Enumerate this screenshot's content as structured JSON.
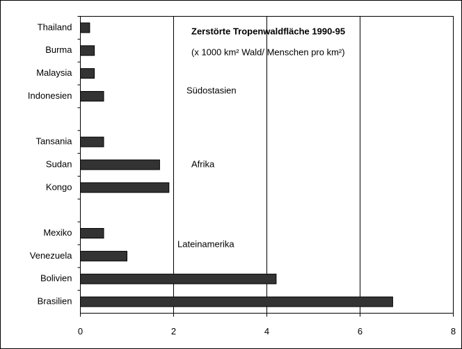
{
  "chart_data": {
    "type": "bar",
    "orientation": "horizontal",
    "title": "Zerstörte Tropenwaldfläche 1990-95",
    "subtitle": "(x 1000 km² Wald/ Menschen pro km²)",
    "annotations": [
      "Südostasien",
      "Afrika",
      "Lateinamerika"
    ],
    "categories": [
      "Thailand",
      "Burma",
      "Malaysia",
      "Indonesien",
      null,
      "Tansania",
      "Sudan",
      "Kongo",
      null,
      "Mexiko",
      "Venezuela",
      "Bolivien",
      "Brasilien"
    ],
    "values": [
      0.2,
      0.3,
      0.3,
      0.5,
      null,
      0.5,
      1.7,
      1.9,
      null,
      0.5,
      1.0,
      4.2,
      6.7
    ],
    "color": "#333333",
    "xlim": [
      0,
      8
    ],
    "xticks": [
      0,
      2,
      4,
      6,
      8
    ],
    "grid": true
  }
}
